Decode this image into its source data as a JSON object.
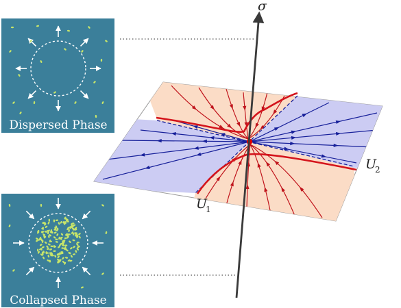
{
  "panels": {
    "top": {
      "caption": "Dispersed Phase"
    },
    "bottom": {
      "caption": "Collapsed Phase"
    }
  },
  "axes": {
    "vertical": "σ",
    "u1": {
      "base": "U",
      "sub": "1"
    },
    "u2": {
      "base": "U",
      "sub": "2"
    }
  },
  "colors": {
    "panel_bg": "#3b7f9a",
    "particle": "#c6e46a",
    "plane_fill": "#ffffff",
    "sector_red": "#fbdcc6",
    "sector_blue": "#ccccf3",
    "flow_red": "#c0141c",
    "flow_blue": "#17209a",
    "fixed_point": "#e00000",
    "axis": "#3a3a3a"
  },
  "icons": [
    "arrow-out-icon",
    "arrow-in-icon",
    "fixed-point-icon"
  ]
}
